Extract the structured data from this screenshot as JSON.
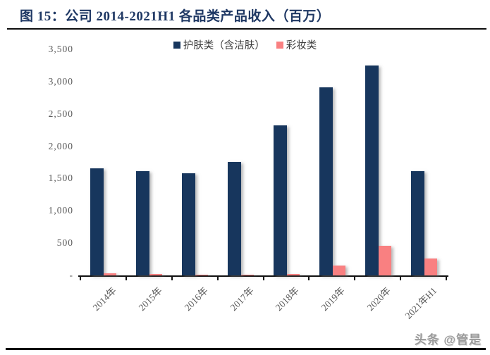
{
  "page": {
    "title": "图 15：公司 2014-2021H1 各品类产品收入（百万）",
    "watermark": "头条 @管是"
  },
  "chart_data": {
    "type": "bar",
    "title": "图 15：公司 2014-2021H1 各品类产品收入（百万）",
    "unit": "百万",
    "categories": [
      "2014年",
      "2015年",
      "2016年",
      "2017年",
      "2018年",
      "2019年",
      "2020年",
      "2021年H1"
    ],
    "series": [
      {
        "name": "护肤类（含洁肤）",
        "color": "#17365D",
        "values": [
          1660,
          1610,
          1580,
          1760,
          2320,
          2910,
          3250,
          1610
        ]
      },
      {
        "name": "彩妆类",
        "color": "#F98081",
        "values": [
          35,
          20,
          15,
          15,
          20,
          150,
          460,
          260
        ]
      }
    ],
    "ylim": [
      0,
      3500
    ],
    "y_ticks": [
      3500,
      3000,
      2500,
      2000,
      1500,
      1000,
      500,
      0
    ],
    "y_tick_labels": [
      "3,500",
      "3,000",
      "2,500",
      "2,000",
      "1,500",
      "1,000",
      "500",
      "-"
    ],
    "grid": false,
    "legend_position": "top-center",
    "xlabel": "",
    "ylabel": ""
  },
  "colors": {
    "title": "#1F3864",
    "rule": "#000000",
    "axis_line": "#111111",
    "axis_label": "#595959",
    "skincare_bar": "#17365D",
    "makeup_bar": "#F98081",
    "watermark": "#9A9A9A"
  }
}
